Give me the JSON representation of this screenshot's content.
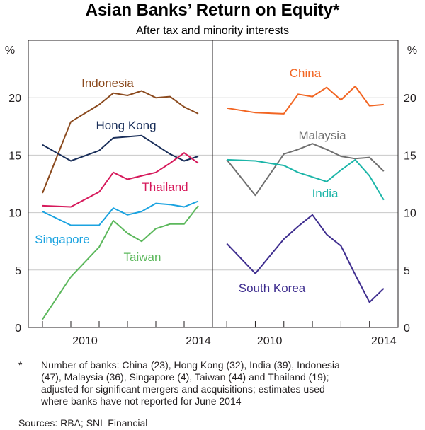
{
  "chart_data": [
    {
      "type": "line",
      "panel": "left",
      "title": "Asian Banks’ Return on Equity*",
      "subtitle": "After tax and minority interests",
      "ylabel": "%",
      "ylim": [
        0,
        25
      ],
      "yticks": [
        0,
        5,
        10,
        15,
        20
      ],
      "xlim": [
        2008.5,
        2015
      ],
      "xtick_labels": [
        "2010",
        "2014"
      ],
      "x": [
        2009,
        2010,
        2011,
        2011.5,
        2012,
        2012.5,
        2013,
        2013.5,
        2014,
        2014.5
      ],
      "grid": true,
      "series": [
        {
          "name": "Indonesia",
          "color": "#8b4a1e",
          "values": [
            11.7,
            17.9,
            19.4,
            20.4,
            20.2,
            20.6,
            20.0,
            20.1,
            19.2,
            18.6
          ]
        },
        {
          "name": "Hong Kong",
          "color": "#1a2f5a",
          "values": [
            15.9,
            14.5,
            15.4,
            16.5,
            16.6,
            16.7,
            15.9,
            15.1,
            14.5,
            14.9
          ]
        },
        {
          "name": "Thailand",
          "color": "#d6195b",
          "values": [
            10.6,
            10.5,
            11.8,
            13.5,
            12.9,
            13.2,
            13.5,
            14.3,
            15.2,
            14.3
          ]
        },
        {
          "name": "Singapore",
          "color": "#1ba3e0",
          "values": [
            10.1,
            8.9,
            8.9,
            10.4,
            9.8,
            10.1,
            10.8,
            10.7,
            10.5,
            11.0
          ]
        },
        {
          "name": "Taiwan",
          "color": "#5cb85c",
          "values": [
            0.7,
            4.4,
            7.0,
            9.3,
            8.2,
            7.5,
            8.6,
            9.0,
            9.0,
            10.6
          ]
        }
      ]
    },
    {
      "type": "line",
      "panel": "right",
      "ylabel": "%",
      "ylim": [
        0,
        25
      ],
      "yticks": [
        0,
        5,
        10,
        15,
        20
      ],
      "xlim": [
        2008.5,
        2015
      ],
      "xtick_labels": [
        "2010",
        "2014"
      ],
      "x": [
        2009,
        2010,
        2011,
        2011.5,
        2012,
        2012.5,
        2013,
        2013.5,
        2014,
        2014.5
      ],
      "grid": true,
      "series": [
        {
          "name": "China",
          "color": "#f26522",
          "values": [
            19.1,
            18.7,
            18.6,
            20.3,
            20.1,
            20.9,
            19.8,
            21.0,
            19.3,
            19.4
          ]
        },
        {
          "name": "Malaysia",
          "color": "#707070",
          "values": [
            14.6,
            11.5,
            15.1,
            15.5,
            16.0,
            15.5,
            14.9,
            14.7,
            14.8,
            13.6
          ]
        },
        {
          "name": "India",
          "color": "#1bb5a8",
          "values": [
            14.6,
            14.5,
            14.1,
            13.5,
            13.1,
            12.7,
            13.7,
            14.6,
            13.2,
            11.1
          ]
        },
        {
          "name": "South Korea",
          "color": "#3f2e8f",
          "values": [
            7.3,
            4.7,
            7.7,
            8.8,
            9.8,
            8.1,
            7.1,
            4.6,
            2.2,
            3.4
          ]
        }
      ]
    }
  ],
  "notes": {
    "star": "*",
    "text": [
      "Number of banks: China (23), Hong Kong (32), India (39), Indonesia",
      "(47), Malaysia (36), Singapore (4), Taiwan (44) and Thailand (19);",
      "adjusted for significant mergers and acquisitions; estimates used",
      "where banks have not reported for June 2014"
    ],
    "sources": "Sources:   RBA; SNL Financial"
  }
}
